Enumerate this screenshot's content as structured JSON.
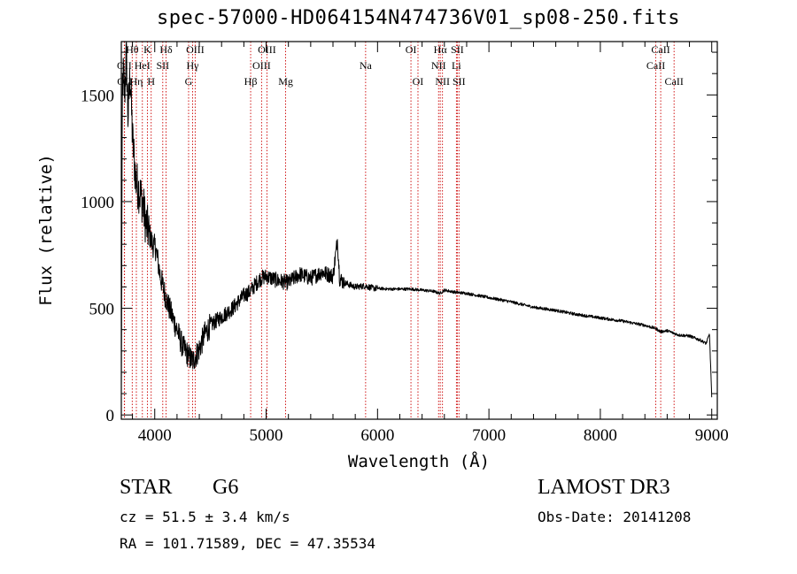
{
  "chart_data": {
    "type": "line",
    "title": "spec-57000-HD064154N474736V01_sp08-250.fits",
    "xlabel": "Wavelength (Å)",
    "ylabel": "Flux (relative)",
    "xlim": [
      3700,
      9050
    ],
    "ylim": [
      -20,
      1750
    ],
    "xticks": [
      4000,
      5000,
      6000,
      7000,
      8000,
      9000
    ],
    "yticks": [
      0,
      500,
      1000,
      1500
    ],
    "spectrum_anchor_points": {
      "x": [
        3700,
        3710,
        3720,
        3730,
        3745,
        3760,
        3780,
        3800,
        3830,
        3860,
        3890,
        3920,
        3950,
        3980,
        4010,
        4050,
        4100,
        4150,
        4200,
        4250,
        4300,
        4340,
        4400,
        4450,
        4500,
        4600,
        4700,
        4800,
        4860,
        4900,
        4950,
        5000,
        5100,
        5200,
        5300,
        5400,
        5500,
        5600,
        5640,
        5660,
        5700,
        5800,
        5890,
        5950,
        6100,
        6300,
        6500,
        6560,
        6600,
        6700,
        6800,
        7000,
        7200,
        7400,
        7600,
        7800,
        8000,
        8200,
        8400,
        8500,
        8540,
        8600,
        8700,
        8800,
        8900,
        8950,
        8980,
        9000
      ],
      "y": [
        100,
        1550,
        1600,
        1500,
        1700,
        1400,
        1600,
        1300,
        1100,
        1050,
        1000,
        900,
        850,
        800,
        780,
        650,
        550,
        470,
        400,
        320,
        280,
        250,
        310,
        380,
        420,
        460,
        500,
        560,
        580,
        610,
        640,
        650,
        630,
        620,
        660,
        640,
        670,
        650,
        820,
        640,
        620,
        600,
        605,
        595,
        590,
        590,
        580,
        570,
        585,
        575,
        570,
        550,
        530,
        505,
        490,
        470,
        455,
        440,
        420,
        405,
        390,
        395,
        375,
        370,
        350,
        335,
        380,
        80
      ]
    },
    "line_markers": [
      {
        "label": "OII",
        "wavelength": 3727,
        "row": 2
      },
      {
        "label": "OII",
        "wavelength": 3729,
        "row": 3
      },
      {
        "label": "Hθ",
        "wavelength": 3798,
        "row": 1
      },
      {
        "label": "Hη",
        "wavelength": 3835,
        "row": 3
      },
      {
        "label": "HeI",
        "wavelength": 3889,
        "row": 2
      },
      {
        "label": "K",
        "wavelength": 3934,
        "row": 1
      },
      {
        "label": "H",
        "wavelength": 3968,
        "row": 3
      },
      {
        "label": "SII",
        "wavelength": 4072,
        "row": 2
      },
      {
        "label": "Hδ",
        "wavelength": 4102,
        "row": 1
      },
      {
        "label": "G",
        "wavelength": 4304,
        "row": 3
      },
      {
        "label": "Hγ",
        "wavelength": 4340,
        "row": 2
      },
      {
        "label": "OIII",
        "wavelength": 4363,
        "row": 1
      },
      {
        "label": "Hβ",
        "wavelength": 4861,
        "row": 3
      },
      {
        "label": "OIII",
        "wavelength": 4959,
        "row": 2
      },
      {
        "label": "OIII",
        "wavelength": 5007,
        "row": 1
      },
      {
        "label": "Mg",
        "wavelength": 5175,
        "row": 3
      },
      {
        "label": "Na",
        "wavelength": 5893,
        "row": 2
      },
      {
        "label": "OI",
        "wavelength": 6300,
        "row": 1
      },
      {
        "label": "OI",
        "wavelength": 6363,
        "row": 3
      },
      {
        "label": "NII",
        "wavelength": 6548,
        "row": 2
      },
      {
        "label": "Hα",
        "wavelength": 6563,
        "row": 1
      },
      {
        "label": "NII",
        "wavelength": 6583,
        "row": 3
      },
      {
        "label": "Li",
        "wavelength": 6708,
        "row": 2
      },
      {
        "label": "SII",
        "wavelength": 6716,
        "row": 1
      },
      {
        "label": "SII",
        "wavelength": 6731,
        "row": 3
      },
      {
        "label": "CaII",
        "wavelength": 8498,
        "row": 2
      },
      {
        "label": "CaII",
        "wavelength": 8542,
        "row": 1
      },
      {
        "label": "CaII",
        "wavelength": 8662,
        "row": 3
      }
    ],
    "line_color": "#000000",
    "marker_color": "#cc0000"
  },
  "info": {
    "class_label": "STAR",
    "subclass": "G6",
    "survey": "LAMOST DR3",
    "redshift": "cz = 51.5 ± 3.4 km/s",
    "obs_date": "Obs-Date: 20141208",
    "coords": "RA = 101.71589, DEC =  47.35534"
  }
}
